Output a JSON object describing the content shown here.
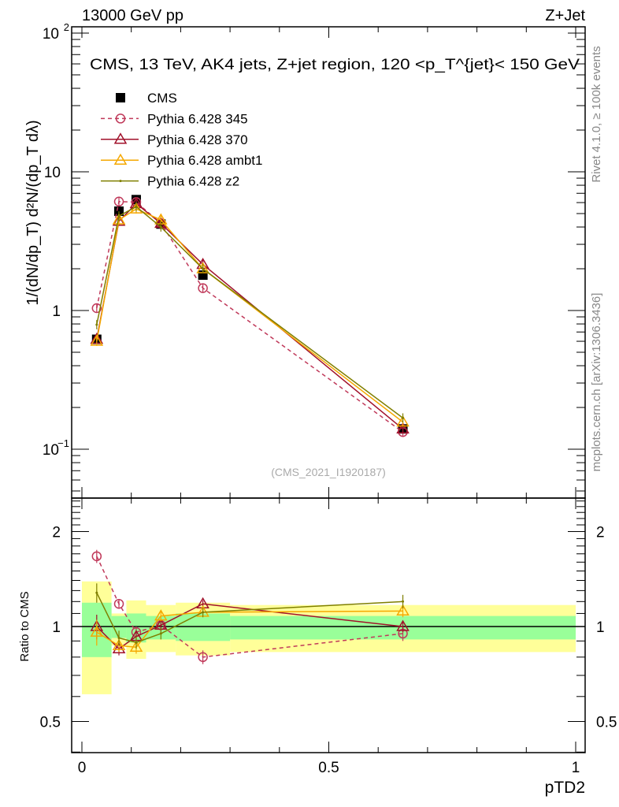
{
  "header": {
    "left": "13000 GeV pp",
    "right": "Z+Jet"
  },
  "side_labels": {
    "rivet": "Rivet 4.1.0, ≥ 100k events",
    "mcplots": "mcplots.cern.ch [arXiv:1306.3436]"
  },
  "watermark": "(CMS_2021_I1920187)",
  "chart_data": [
    {
      "type": "line",
      "title": "CMS, 13 TeV, AK4 jets, Z+jet region, 120 <p_T^{jet}< 150 GeV",
      "title_parts": {
        "main": "CMS, 13 TeV, AK4 jets, Z+jet region, 120 <p",
        "sub": "T",
        "sup": "{jet",
        "tail": "}< 150 GeV"
      },
      "ylabel": "1/(dN/dp_T) d²N/(dp_T dλ)",
      "yscale": "log",
      "ylim": [
        0.0443,
        111
      ],
      "xlim": [
        -0.02,
        1.02
      ],
      "y_tick_labels": [
        {
          "v": 0.1,
          "t": "10",
          "sup": "−1"
        },
        {
          "v": 1,
          "t": "1",
          "sup": ""
        },
        {
          "v": 10,
          "t": "10",
          "sup": ""
        },
        {
          "v": 100,
          "t": "10",
          "sup": "2"
        }
      ],
      "x": [
        0.03,
        0.075,
        0.11,
        0.16,
        0.245,
        0.65
      ],
      "series": [
        {
          "name": "CMS",
          "color": "#000000",
          "marker": "square",
          "values": [
            0.62,
            5.2,
            6.3,
            4.2,
            1.8,
            0.14
          ]
        },
        {
          "name": "Pythia 6.428 345",
          "color": "#c0395a",
          "marker": "circle",
          "dashed": true,
          "values": [
            1.04,
            6.1,
            6.05,
            4.25,
            1.45,
            0.133
          ]
        },
        {
          "name": "Pythia 6.428 370",
          "color": "#a0102a",
          "marker": "triangle",
          "values": [
            0.62,
            4.4,
            5.9,
            4.25,
            2.15,
            0.14
          ]
        },
        {
          "name": "Pythia 6.428 ambt1",
          "color": "#f5a800",
          "marker": "triangle",
          "values": [
            0.6,
            4.5,
            5.4,
            4.5,
            2.0,
            0.157
          ]
        },
        {
          "name": "Pythia 6.428 z2",
          "color": "#7f7f00",
          "marker": "dot",
          "values": [
            0.79,
            4.8,
            5.6,
            4.0,
            2.0,
            0.168
          ]
        }
      ],
      "legend_position": "top-left"
    },
    {
      "type": "line",
      "ylabel": "Ratio to CMS",
      "xlabel": "pTD2",
      "yscale": "log",
      "ylim": [
        0.4,
        2.55
      ],
      "y_tick_labels": [
        {
          "v": 0.5,
          "t": "0.5"
        },
        {
          "v": 1,
          "t": "1"
        },
        {
          "v": 2,
          "t": "2"
        }
      ],
      "x_tick_labels": [
        {
          "v": 0,
          "t": "0"
        },
        {
          "v": 0.5,
          "t": "0.5"
        },
        {
          "v": 1,
          "t": "1"
        }
      ],
      "bin_edges": [
        0,
        0.06,
        0.09,
        0.13,
        0.19,
        0.3,
        1.0
      ],
      "band_stat": [
        [
          0.8,
          1.19
        ],
        [
          0.92,
          1.08
        ],
        [
          0.89,
          1.1
        ],
        [
          0.91,
          1.08
        ],
        [
          0.9,
          1.1
        ],
        [
          0.91,
          1.08
        ]
      ],
      "band_total": [
        [
          0.61,
          1.39
        ],
        [
          0.87,
          1.1
        ],
        [
          0.79,
          1.21
        ],
        [
          0.83,
          1.17
        ],
        [
          0.81,
          1.19
        ],
        [
          0.83,
          1.17
        ]
      ],
      "x": [
        0.03,
        0.075,
        0.11,
        0.16,
        0.245,
        0.65
      ],
      "series": [
        {
          "name": "Pythia 6.428 345",
          "values": [
            1.67,
            1.18,
            0.96,
            1.01,
            0.8,
            0.95
          ],
          "err": [
            0.08,
            0.04,
            0.04,
            0.04,
            0.04,
            0.05
          ]
        },
        {
          "name": "Pythia 6.428 370",
          "values": [
            1.0,
            0.85,
            0.93,
            1.01,
            1.18,
            1.0
          ],
          "err": [
            0.09,
            0.04,
            0.03,
            0.04,
            0.03,
            0.04
          ]
        },
        {
          "name": "Pythia 6.428 ambt1",
          "values": [
            0.96,
            0.87,
            0.86,
            1.08,
            1.11,
            1.12
          ],
          "err": [
            0.09,
            0.04,
            0.04,
            0.04,
            0.03,
            0.05
          ]
        },
        {
          "name": "Pythia 6.428 z2",
          "values": [
            1.28,
            0.92,
            0.89,
            0.95,
            1.11,
            1.2
          ],
          "err": [
            0.09,
            0.05,
            0.04,
            0.04,
            0.04,
            0.06
          ]
        }
      ]
    }
  ]
}
